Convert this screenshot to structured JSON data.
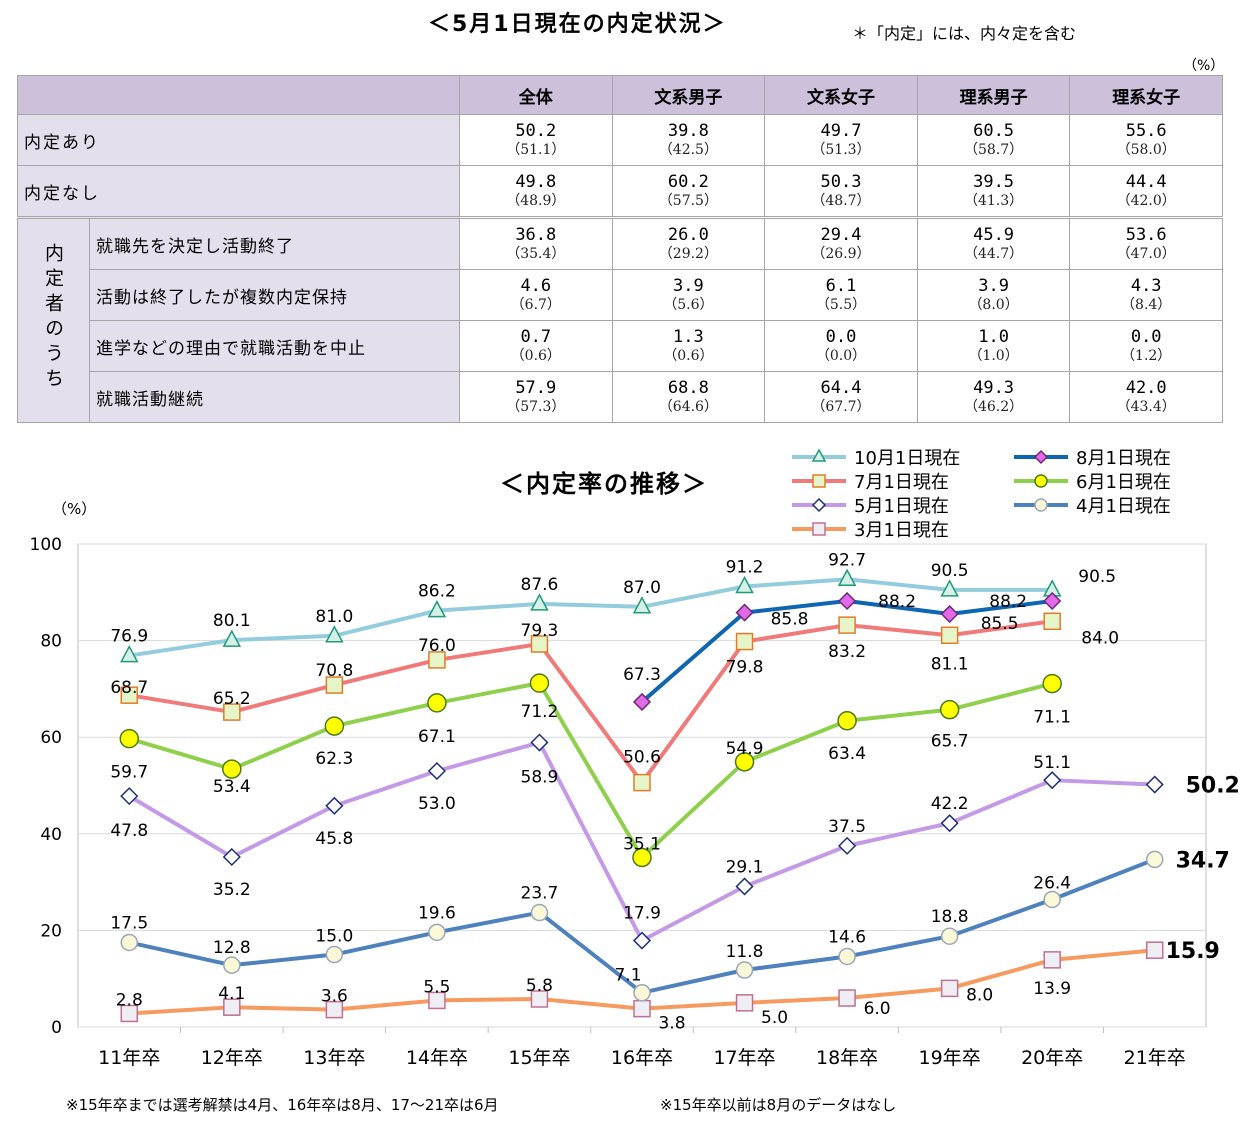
{
  "header": {
    "title": "＜5月1日現在の内定状況＞",
    "note": "＊「内定」には、内々定を含む",
    "unit": "（%）"
  },
  "table": {
    "columns": [
      "全体",
      "文系男子",
      "文系女子",
      "理系男子",
      "理系女子"
    ],
    "top_rows": [
      {
        "label": "内定あり",
        "values": [
          "50.2",
          "39.8",
          "49.7",
          "60.5",
          "55.6"
        ],
        "prev": [
          "（51.1）",
          "（42.5）",
          "（51.3）",
          "（58.7）",
          "（58.0）"
        ]
      },
      {
        "label": "内定なし",
        "values": [
          "49.8",
          "60.2",
          "50.3",
          "39.5",
          "44.4"
        ],
        "prev": [
          "（48.9）",
          "（57.5）",
          "（48.7）",
          "（41.3）",
          "（42.0）"
        ]
      }
    ],
    "group_label": "内定者のうち",
    "group_rows": [
      {
        "label": "就職先を決定し活動終了",
        "values": [
          "36.8",
          "26.0",
          "29.4",
          "45.9",
          "53.6"
        ],
        "prev": [
          "（35.4）",
          "（29.2）",
          "（26.9）",
          "（44.7）",
          "（47.0）"
        ]
      },
      {
        "label": "活動は終了したが複数内定保持",
        "values": [
          "4.6",
          "3.9",
          "6.1",
          "3.9",
          "4.3"
        ],
        "prev": [
          "（6.7）",
          "（5.6）",
          "（5.5）",
          "（8.0）",
          "（8.4）"
        ]
      },
      {
        "label": "進学などの理由で就職活動を中止",
        "values": [
          "0.7",
          "1.3",
          "0.0",
          "1.0",
          "0.0"
        ],
        "prev": [
          "（0.6）",
          "（0.6）",
          "（0.0）",
          "（1.0）",
          "（1.2）"
        ]
      },
      {
        "label": "就職活動継続",
        "values": [
          "57.9",
          "68.8",
          "64.4",
          "49.3",
          "42.0"
        ],
        "prev": [
          "（57.3）",
          "（64.6）",
          "（67.7）",
          "（46.2）",
          "（43.4）"
        ]
      }
    ]
  },
  "chart_data": {
    "type": "line",
    "title": "＜内定率の推移＞",
    "ylabel": "（%）",
    "ylim": [
      0,
      100
    ],
    "yticks": [
      0,
      20,
      40,
      60,
      80,
      100
    ],
    "categories": [
      "11年卒",
      "12年卒",
      "13年卒",
      "14年卒",
      "15年卒",
      "16年卒",
      "17年卒",
      "18年卒",
      "19年卒",
      "20年卒",
      "21年卒"
    ],
    "grid": true,
    "legend_position": "top-right",
    "series": [
      {
        "name": "10月1日現在",
        "color": "#93cddd",
        "marker": "triangle",
        "markerFill": "#d6f0e8",
        "markerStroke": "#1f9a7a",
        "values": [
          76.9,
          80.1,
          81.0,
          86.2,
          87.6,
          87.0,
          91.2,
          92.7,
          90.5,
          90.5,
          null
        ]
      },
      {
        "name": "8月1日現在",
        "color": "#0e65b0",
        "marker": "diamond",
        "markerFill": "#e26ae8",
        "markerStroke": "#6b2a77",
        "values": [
          null,
          null,
          null,
          null,
          null,
          67.3,
          85.8,
          88.2,
          85.5,
          88.2,
          null
        ]
      },
      {
        "name": "7月1日現在",
        "color": "#f07a7a",
        "marker": "square",
        "markerFill": "#e6f5c8",
        "markerStroke": "#e07b2a",
        "values": [
          68.7,
          65.2,
          70.8,
          76.0,
          79.3,
          50.6,
          79.8,
          83.2,
          81.1,
          84.0,
          null
        ]
      },
      {
        "name": "6月1日現在",
        "color": "#8ed04b",
        "marker": "circle",
        "markerFill": "#ffff00",
        "markerStroke": "#4a7a1a",
        "values": [
          59.7,
          53.4,
          62.3,
          67.1,
          71.2,
          35.1,
          54.9,
          63.4,
          65.7,
          71.1,
          null
        ]
      },
      {
        "name": "5月1日現在",
        "color": "#c49ae6",
        "marker": "diamond",
        "markerFill": "#ffffff",
        "markerStroke": "#1e2f78",
        "values": [
          47.8,
          35.2,
          45.8,
          53.0,
          58.9,
          17.9,
          29.1,
          37.5,
          42.2,
          51.1,
          50.2
        ]
      },
      {
        "name": "4月1日現在",
        "color": "#4f81bd",
        "marker": "circle",
        "markerFill": "#fbf8d8",
        "markerStroke": "#9aa6b8",
        "values": [
          17.5,
          12.8,
          15.0,
          19.6,
          23.7,
          7.1,
          11.8,
          14.6,
          18.8,
          26.4,
          34.7
        ]
      },
      {
        "name": "3月1日現在",
        "color": "#f79a60",
        "marker": "square",
        "markerFill": "#eeeef4",
        "markerStroke": "#c07090",
        "values": [
          2.8,
          4.1,
          3.6,
          5.5,
          5.8,
          3.8,
          5.0,
          6.0,
          8.0,
          13.9,
          15.9
        ]
      }
    ],
    "data_labels": [
      {
        "series": 0,
        "labels": [
          "76.9",
          "80.1",
          "81.0",
          "86.2",
          "87.6",
          "87.0",
          "91.2",
          "92.7",
          "90.5",
          "90.5",
          ""
        ]
      },
      {
        "series": 1,
        "labels": [
          "",
          "",
          "",
          "",
          "",
          "67.3",
          "85.8",
          "88.2",
          "85.5",
          "88.2",
          ""
        ]
      },
      {
        "series": 2,
        "labels": [
          "68.7",
          "65.2",
          "70.8",
          "76.0",
          "79.3",
          "50.6",
          "79.8",
          "83.2",
          "81.1",
          "84.0",
          ""
        ]
      },
      {
        "series": 3,
        "labels": [
          "59.7",
          "53.4",
          "62.3",
          "67.1",
          "71.2",
          "35.1",
          "54.9",
          "63.4",
          "65.7",
          "71.1",
          ""
        ]
      },
      {
        "series": 4,
        "labels": [
          "47.8",
          "35.2",
          "45.8",
          "53.0",
          "58.9",
          "17.9",
          "29.1",
          "37.5",
          "42.2",
          "51.1",
          "50.2"
        ]
      },
      {
        "series": 5,
        "labels": [
          "17.5",
          "12.8",
          "15.0",
          "19.6",
          "23.7",
          "7.1",
          "11.8",
          "14.6",
          "18.8",
          "26.4",
          "34.7"
        ]
      },
      {
        "series": 6,
        "labels": [
          "2.8",
          "4.1",
          "3.6",
          "5.5",
          "5.8",
          "3.8",
          "5.0",
          "6.0",
          "8.0",
          "13.9",
          "15.9"
        ]
      }
    ]
  },
  "footnotes": {
    "left": "※15年卒までは選考解禁は4月、16年卒は8月、17～21卒は6月",
    "right": "※15年卒以前は8月のデータはなし"
  }
}
